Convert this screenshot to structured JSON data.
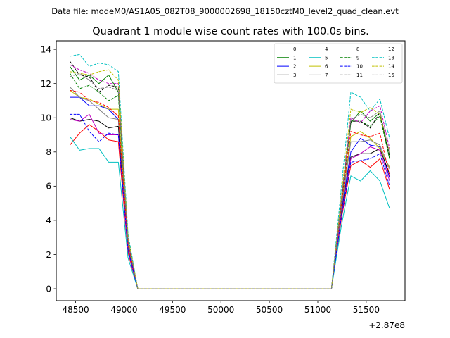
{
  "suptitle": "Data file: modeM0/AS1A05_082T08_9000002698_18150cztM0_level2_quad_clean.evt",
  "chart_data": {
    "type": "line",
    "title": "Quadrant 1 module wise count rates with 100.0s bins.",
    "xlabel": "",
    "ylabel": "",
    "offset_text": "+2.87e8",
    "x_offset": 287000000,
    "xlim": [
      48300,
      51900
    ],
    "ylim": [
      -0.7,
      14.5
    ],
    "xticks": [
      48500,
      49000,
      49500,
      50000,
      50500,
      51000,
      51500
    ],
    "xtick_labels": [
      "48500",
      "49000",
      "49500",
      "50000",
      "50500",
      "51000",
      "51500"
    ],
    "yticks": [
      0,
      2,
      4,
      6,
      8,
      10,
      12,
      14
    ],
    "ytick_labels": [
      "0",
      "2",
      "4",
      "6",
      "8",
      "10",
      "12",
      "14"
    ],
    "grid": false,
    "legend_position": "top-right",
    "legend_columns": 4,
    "x": [
      48441,
      48541,
      48641,
      48741,
      48841,
      48941,
      49041,
      49141,
      49241,
      49341,
      49441,
      49541,
      49641,
      49741,
      49841,
      49941,
      50041,
      50141,
      50241,
      50341,
      50441,
      50541,
      50641,
      50741,
      50841,
      50941,
      51041,
      51141,
      51241,
      51341,
      51441,
      51541,
      51641,
      51741
    ],
    "series": [
      {
        "name": "0",
        "color": "#ff0000",
        "dash": "solid",
        "values": [
          8.4,
          9.1,
          9.6,
          9.2,
          8.7,
          8.6,
          2.1,
          0,
          0,
          0,
          0,
          0,
          0,
          0,
          0,
          0,
          0,
          0,
          0,
          0,
          0,
          0,
          0,
          0,
          0,
          0,
          0,
          0,
          4.0,
          7.2,
          7.5,
          7.1,
          7.6,
          5.8
        ]
      },
      {
        "name": "1",
        "color": "#008000",
        "dash": "solid",
        "values": [
          13.0,
          12.2,
          12.5,
          12.0,
          12.5,
          11.5,
          2.9,
          0,
          0,
          0,
          0,
          0,
          0,
          0,
          0,
          0,
          0,
          0,
          0,
          0,
          0,
          0,
          0,
          0,
          0,
          0,
          0,
          0,
          5.0,
          9.7,
          10.4,
          9.8,
          10.3,
          7.6
        ]
      },
      {
        "name": "2",
        "color": "#0000ff",
        "dash": "solid",
        "values": [
          11.2,
          11.2,
          10.7,
          10.7,
          10.5,
          9.9,
          2.5,
          0,
          0,
          0,
          0,
          0,
          0,
          0,
          0,
          0,
          0,
          0,
          0,
          0,
          0,
          0,
          0,
          0,
          0,
          0,
          0,
          0,
          4.5,
          8.0,
          8.8,
          8.4,
          8.3,
          6.5
        ]
      },
      {
        "name": "3",
        "color": "#000000",
        "dash": "solid",
        "values": [
          10.0,
          9.8,
          9.9,
          9.8,
          9.4,
          9.5,
          2.3,
          0,
          0,
          0,
          0,
          0,
          0,
          0,
          0,
          0,
          0,
          0,
          0,
          0,
          0,
          0,
          0,
          0,
          0,
          0,
          0,
          0,
          4.3,
          7.7,
          7.9,
          7.9,
          8.2,
          6.7
        ]
      },
      {
        "name": "4",
        "color": "#c000c0",
        "dash": "solid",
        "values": [
          9.9,
          9.8,
          10.2,
          9.1,
          9.0,
          9.0,
          2.2,
          0,
          0,
          0,
          0,
          0,
          0,
          0,
          0,
          0,
          0,
          0,
          0,
          0,
          0,
          0,
          0,
          0,
          0,
          0,
          0,
          0,
          4.2,
          7.6,
          7.9,
          8.3,
          8.1,
          6.3
        ]
      },
      {
        "name": "5",
        "color": "#00c0c0",
        "dash": "solid",
        "values": [
          8.9,
          8.1,
          8.2,
          8.2,
          7.4,
          7.4,
          1.8,
          0,
          0,
          0,
          0,
          0,
          0,
          0,
          0,
          0,
          0,
          0,
          0,
          0,
          0,
          0,
          0,
          0,
          0,
          0,
          0,
          0,
          3.6,
          6.6,
          6.3,
          6.9,
          6.3,
          4.7
        ]
      },
      {
        "name": "6",
        "color": "#c0c000",
        "dash": "solid",
        "values": [
          11.6,
          11.2,
          11.1,
          10.8,
          10.5,
          10.5,
          2.6,
          0,
          0,
          0,
          0,
          0,
          0,
          0,
          0,
          0,
          0,
          0,
          0,
          0,
          0,
          0,
          0,
          0,
          0,
          0,
          0,
          0,
          4.7,
          8.9,
          9.2,
          8.8,
          8.2,
          7.1
        ]
      },
      {
        "name": "7",
        "color": "#808080",
        "dash": "solid",
        "values": [
          11.8,
          11.2,
          11.0,
          10.5,
          10.0,
          9.9,
          2.5,
          0,
          0,
          0,
          0,
          0,
          0,
          0,
          0,
          0,
          0,
          0,
          0,
          0,
          0,
          0,
          0,
          0,
          0,
          0,
          0,
          0,
          4.6,
          8.6,
          8.6,
          8.7,
          8.4,
          7.0
        ]
      },
      {
        "name": "8",
        "color": "#ff0000",
        "dash": "dashed",
        "values": [
          11.6,
          11.5,
          11.0,
          10.9,
          10.6,
          10.1,
          2.6,
          0,
          0,
          0,
          0,
          0,
          0,
          0,
          0,
          0,
          0,
          0,
          0,
          0,
          0,
          0,
          0,
          0,
          0,
          0,
          0,
          0,
          4.8,
          9.2,
          9.0,
          8.9,
          9.1,
          6.6
        ]
      },
      {
        "name": "9",
        "color": "#008000",
        "dash": "dashed",
        "values": [
          12.6,
          11.7,
          11.9,
          11.5,
          11.0,
          11.3,
          2.8,
          0,
          0,
          0,
          0,
          0,
          0,
          0,
          0,
          0,
          0,
          0,
          0,
          0,
          0,
          0,
          0,
          0,
          0,
          0,
          0,
          0,
          5.0,
          9.8,
          9.8,
          9.5,
          10.1,
          7.6
        ]
      },
      {
        "name": "10",
        "color": "#0000ff",
        "dash": "dashed",
        "values": [
          10.2,
          10.2,
          9.2,
          8.6,
          9.1,
          9.0,
          2.3,
          0,
          0,
          0,
          0,
          0,
          0,
          0,
          0,
          0,
          0,
          0,
          0,
          0,
          0,
          0,
          0,
          0,
          0,
          0,
          0,
          0,
          4.1,
          7.4,
          7.5,
          7.6,
          7.9,
          6.0
        ]
      },
      {
        "name": "11",
        "color": "#000000",
        "dash": "dashed",
        "values": [
          13.3,
          12.5,
          12.4,
          11.5,
          11.9,
          11.8,
          2.9,
          0,
          0,
          0,
          0,
          0,
          0,
          0,
          0,
          0,
          0,
          0,
          0,
          0,
          0,
          0,
          0,
          0,
          0,
          0,
          0,
          0,
          5.1,
          9.8,
          9.8,
          9.4,
          10.3,
          7.8
        ]
      },
      {
        "name": "12",
        "color": "#c000c0",
        "dash": "dashed",
        "values": [
          13.1,
          12.8,
          12.6,
          12.2,
          12.0,
          12.0,
          2.9,
          0,
          0,
          0,
          0,
          0,
          0,
          0,
          0,
          0,
          0,
          0,
          0,
          0,
          0,
          0,
          0,
          0,
          0,
          0,
          0,
          0,
          5.2,
          10.0,
          9.7,
          10.4,
          10.7,
          8.2
        ]
      },
      {
        "name": "13",
        "color": "#00c0c0",
        "dash": "dashed",
        "values": [
          13.6,
          13.7,
          13.0,
          13.2,
          13.1,
          12.7,
          3.2,
          0,
          0,
          0,
          0,
          0,
          0,
          0,
          0,
          0,
          0,
          0,
          0,
          0,
          0,
          0,
          0,
          0,
          0,
          0,
          0,
          0,
          5.8,
          11.5,
          11.2,
          10.4,
          11.1,
          8.8
        ]
      },
      {
        "name": "14",
        "color": "#c0c000",
        "dash": "dashed",
        "values": [
          12.7,
          12.6,
          12.5,
          12.7,
          12.8,
          12.2,
          3.0,
          0,
          0,
          0,
          0,
          0,
          0,
          0,
          0,
          0,
          0,
          0,
          0,
          0,
          0,
          0,
          0,
          0,
          0,
          0,
          0,
          0,
          5.3,
          10.5,
          10.3,
          10.6,
          10.2,
          8.0
        ]
      },
      {
        "name": "15",
        "color": "#808080",
        "dash": "dashed",
        "values": [
          12.4,
          12.6,
          12.2,
          11.7,
          11.8,
          11.6,
          2.8,
          0,
          0,
          0,
          0,
          0,
          0,
          0,
          0,
          0,
          0,
          0,
          0,
          0,
          0,
          0,
          0,
          0,
          0,
          0,
          0,
          0,
          5.0,
          9.9,
          10.2,
          10.0,
          10.4,
          7.9
        ]
      }
    ]
  }
}
